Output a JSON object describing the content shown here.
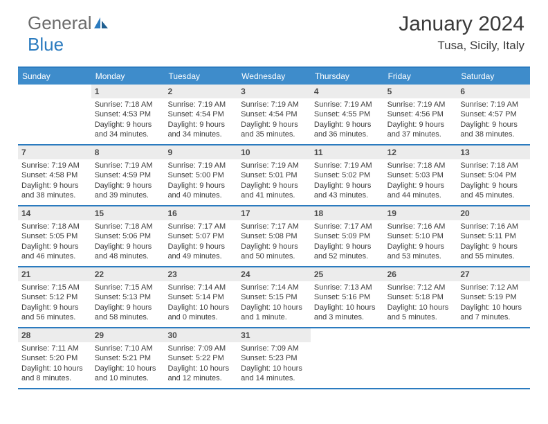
{
  "colors": {
    "header_bar": "#3e8ccb",
    "border": "#2b7bbf",
    "daynum_bg": "#ececec",
    "text": "#3a3a3a",
    "logo_gray": "#6b6b6b",
    "logo_blue": "#2b7bbf"
  },
  "logo": {
    "part1": "General",
    "part2": "Blue"
  },
  "title": "January 2024",
  "location": "Tusa, Sicily, Italy",
  "weekdays": [
    "Sunday",
    "Monday",
    "Tuesday",
    "Wednesday",
    "Thursday",
    "Friday",
    "Saturday"
  ],
  "weeks": [
    [
      {
        "n": "",
        "empty": true
      },
      {
        "n": "1",
        "sr": "Sunrise: 7:18 AM",
        "ss": "Sunset: 4:53 PM",
        "d1": "Daylight: 9 hours",
        "d2": "and 34 minutes."
      },
      {
        "n": "2",
        "sr": "Sunrise: 7:19 AM",
        "ss": "Sunset: 4:54 PM",
        "d1": "Daylight: 9 hours",
        "d2": "and 34 minutes."
      },
      {
        "n": "3",
        "sr": "Sunrise: 7:19 AM",
        "ss": "Sunset: 4:54 PM",
        "d1": "Daylight: 9 hours",
        "d2": "and 35 minutes."
      },
      {
        "n": "4",
        "sr": "Sunrise: 7:19 AM",
        "ss": "Sunset: 4:55 PM",
        "d1": "Daylight: 9 hours",
        "d2": "and 36 minutes."
      },
      {
        "n": "5",
        "sr": "Sunrise: 7:19 AM",
        "ss": "Sunset: 4:56 PM",
        "d1": "Daylight: 9 hours",
        "d2": "and 37 minutes."
      },
      {
        "n": "6",
        "sr": "Sunrise: 7:19 AM",
        "ss": "Sunset: 4:57 PM",
        "d1": "Daylight: 9 hours",
        "d2": "and 38 minutes."
      }
    ],
    [
      {
        "n": "7",
        "sr": "Sunrise: 7:19 AM",
        "ss": "Sunset: 4:58 PM",
        "d1": "Daylight: 9 hours",
        "d2": "and 38 minutes."
      },
      {
        "n": "8",
        "sr": "Sunrise: 7:19 AM",
        "ss": "Sunset: 4:59 PM",
        "d1": "Daylight: 9 hours",
        "d2": "and 39 minutes."
      },
      {
        "n": "9",
        "sr": "Sunrise: 7:19 AM",
        "ss": "Sunset: 5:00 PM",
        "d1": "Daylight: 9 hours",
        "d2": "and 40 minutes."
      },
      {
        "n": "10",
        "sr": "Sunrise: 7:19 AM",
        "ss": "Sunset: 5:01 PM",
        "d1": "Daylight: 9 hours",
        "d2": "and 41 minutes."
      },
      {
        "n": "11",
        "sr": "Sunrise: 7:19 AM",
        "ss": "Sunset: 5:02 PM",
        "d1": "Daylight: 9 hours",
        "d2": "and 43 minutes."
      },
      {
        "n": "12",
        "sr": "Sunrise: 7:18 AM",
        "ss": "Sunset: 5:03 PM",
        "d1": "Daylight: 9 hours",
        "d2": "and 44 minutes."
      },
      {
        "n": "13",
        "sr": "Sunrise: 7:18 AM",
        "ss": "Sunset: 5:04 PM",
        "d1": "Daylight: 9 hours",
        "d2": "and 45 minutes."
      }
    ],
    [
      {
        "n": "14",
        "sr": "Sunrise: 7:18 AM",
        "ss": "Sunset: 5:05 PM",
        "d1": "Daylight: 9 hours",
        "d2": "and 46 minutes."
      },
      {
        "n": "15",
        "sr": "Sunrise: 7:18 AM",
        "ss": "Sunset: 5:06 PM",
        "d1": "Daylight: 9 hours",
        "d2": "and 48 minutes."
      },
      {
        "n": "16",
        "sr": "Sunrise: 7:17 AM",
        "ss": "Sunset: 5:07 PM",
        "d1": "Daylight: 9 hours",
        "d2": "and 49 minutes."
      },
      {
        "n": "17",
        "sr": "Sunrise: 7:17 AM",
        "ss": "Sunset: 5:08 PM",
        "d1": "Daylight: 9 hours",
        "d2": "and 50 minutes."
      },
      {
        "n": "18",
        "sr": "Sunrise: 7:17 AM",
        "ss": "Sunset: 5:09 PM",
        "d1": "Daylight: 9 hours",
        "d2": "and 52 minutes."
      },
      {
        "n": "19",
        "sr": "Sunrise: 7:16 AM",
        "ss": "Sunset: 5:10 PM",
        "d1": "Daylight: 9 hours",
        "d2": "and 53 minutes."
      },
      {
        "n": "20",
        "sr": "Sunrise: 7:16 AM",
        "ss": "Sunset: 5:11 PM",
        "d1": "Daylight: 9 hours",
        "d2": "and 55 minutes."
      }
    ],
    [
      {
        "n": "21",
        "sr": "Sunrise: 7:15 AM",
        "ss": "Sunset: 5:12 PM",
        "d1": "Daylight: 9 hours",
        "d2": "and 56 minutes."
      },
      {
        "n": "22",
        "sr": "Sunrise: 7:15 AM",
        "ss": "Sunset: 5:13 PM",
        "d1": "Daylight: 9 hours",
        "d2": "and 58 minutes."
      },
      {
        "n": "23",
        "sr": "Sunrise: 7:14 AM",
        "ss": "Sunset: 5:14 PM",
        "d1": "Daylight: 10 hours",
        "d2": "and 0 minutes."
      },
      {
        "n": "24",
        "sr": "Sunrise: 7:14 AM",
        "ss": "Sunset: 5:15 PM",
        "d1": "Daylight: 10 hours",
        "d2": "and 1 minute."
      },
      {
        "n": "25",
        "sr": "Sunrise: 7:13 AM",
        "ss": "Sunset: 5:16 PM",
        "d1": "Daylight: 10 hours",
        "d2": "and 3 minutes."
      },
      {
        "n": "26",
        "sr": "Sunrise: 7:12 AM",
        "ss": "Sunset: 5:18 PM",
        "d1": "Daylight: 10 hours",
        "d2": "and 5 minutes."
      },
      {
        "n": "27",
        "sr": "Sunrise: 7:12 AM",
        "ss": "Sunset: 5:19 PM",
        "d1": "Daylight: 10 hours",
        "d2": "and 7 minutes."
      }
    ],
    [
      {
        "n": "28",
        "sr": "Sunrise: 7:11 AM",
        "ss": "Sunset: 5:20 PM",
        "d1": "Daylight: 10 hours",
        "d2": "and 8 minutes."
      },
      {
        "n": "29",
        "sr": "Sunrise: 7:10 AM",
        "ss": "Sunset: 5:21 PM",
        "d1": "Daylight: 10 hours",
        "d2": "and 10 minutes."
      },
      {
        "n": "30",
        "sr": "Sunrise: 7:09 AM",
        "ss": "Sunset: 5:22 PM",
        "d1": "Daylight: 10 hours",
        "d2": "and 12 minutes."
      },
      {
        "n": "31",
        "sr": "Sunrise: 7:09 AM",
        "ss": "Sunset: 5:23 PM",
        "d1": "Daylight: 10 hours",
        "d2": "and 14 minutes."
      },
      {
        "n": "",
        "empty": true
      },
      {
        "n": "",
        "empty": true
      },
      {
        "n": "",
        "empty": true
      }
    ]
  ]
}
